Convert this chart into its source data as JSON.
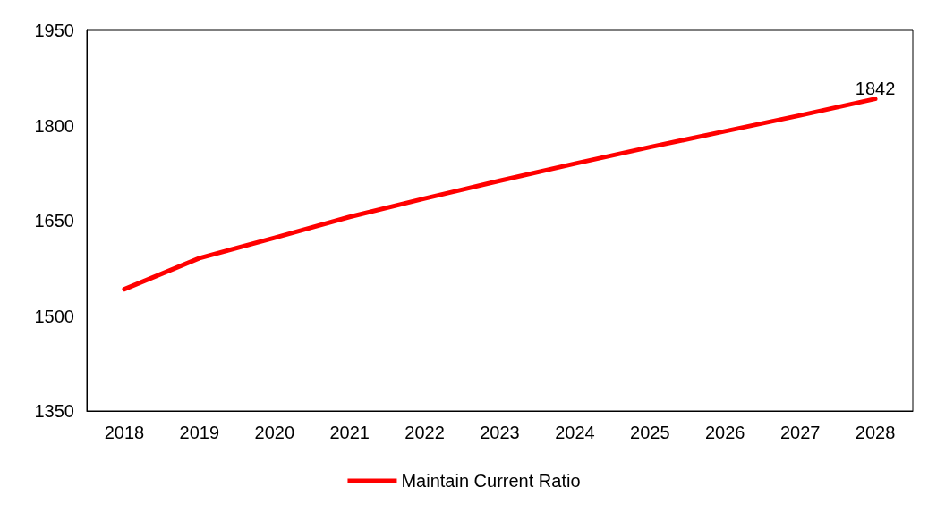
{
  "chart_data": {
    "type": "line",
    "categories": [
      "2018",
      "2019",
      "2020",
      "2021",
      "2022",
      "2023",
      "2024",
      "2025",
      "2026",
      "2027",
      "2028"
    ],
    "series": [
      {
        "name": "Maintain Current Ratio",
        "color": "#ff0000",
        "values": [
          1542,
          1591,
          1623,
          1656,
          1685,
          1713,
          1740,
          1766,
          1791,
          1816,
          1842
        ],
        "value_labels": [
          null,
          null,
          null,
          null,
          null,
          null,
          null,
          null,
          null,
          null,
          "1842"
        ]
      }
    ],
    "ylim": [
      1350,
      1950
    ],
    "yticks": [
      1350,
      1500,
      1650,
      1800,
      1950
    ],
    "grid": false,
    "legend": "bottom",
    "marker": "none",
    "line_style": "solid"
  }
}
